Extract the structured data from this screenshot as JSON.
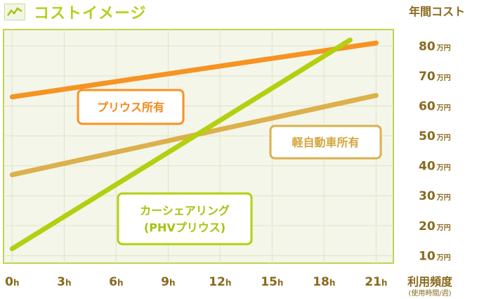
{
  "title": "コストイメージ",
  "icon": "chart-line-icon",
  "colors": {
    "plot_bg": "#f4f6ea",
    "plot_border": "#c3d24f",
    "grid": "#dfe5c4",
    "axis_text": "#8a6a1e",
    "title": "#b8cf1e"
  },
  "chart_data": {
    "type": "line",
    "ylabel": "年間コスト",
    "xlabel": "利用頻度",
    "xlabel_sub": "(使用時間/週)",
    "x_ticks": [
      0,
      3,
      6,
      9,
      12,
      15,
      18,
      21
    ],
    "x_unit": "h",
    "y_ticks": [
      10,
      20,
      30,
      40,
      50,
      60,
      70,
      80
    ],
    "y_unit": "万円",
    "xlim": [
      -0.5,
      22
    ],
    "ylim": [
      7.5,
      85.5
    ],
    "grid": true,
    "series": [
      {
        "name": "プリウス所有",
        "color": "#f79322",
        "x": [
          0,
          21
        ],
        "y": [
          63,
          81
        ]
      },
      {
        "name": "軽自動車所有",
        "color": "#dcb04c",
        "x": [
          0,
          21
        ],
        "y": [
          37,
          63.5
        ]
      },
      {
        "name": "カーシェアリング\n(PHVプリウス)",
        "color": "#b4cf0f",
        "x": [
          0,
          19.5
        ],
        "y": [
          12.3,
          82
        ]
      }
    ]
  }
}
